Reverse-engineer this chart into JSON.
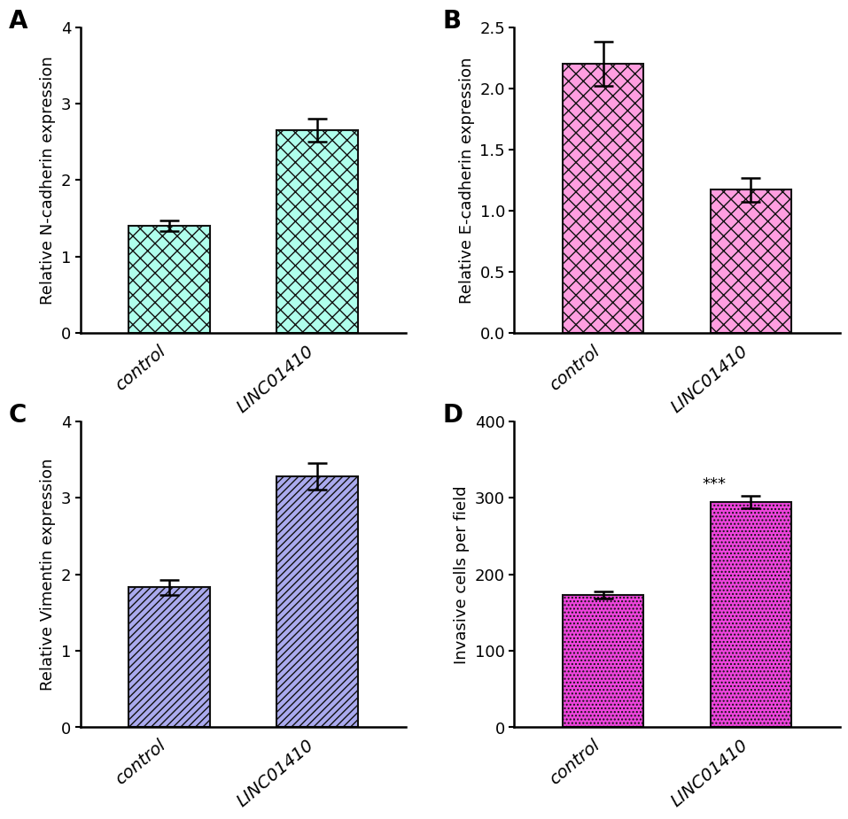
{
  "panel_A": {
    "categories": [
      "control",
      "LINC01410"
    ],
    "values": [
      1.4,
      2.65
    ],
    "errors": [
      0.07,
      0.15
    ],
    "ylabel": "Relative N-cadherin expression",
    "ylim": [
      0,
      4
    ],
    "yticks": [
      0,
      1,
      2,
      3,
      4
    ],
    "bar_color": "#AFFFEC",
    "hatch": "xx",
    "label": "A"
  },
  "panel_B": {
    "categories": [
      "control",
      "LINC01410"
    ],
    "values": [
      2.2,
      1.17
    ],
    "errors": [
      0.18,
      0.1
    ],
    "ylabel": "Relative E-cadherin expression",
    "ylim": [
      0,
      2.5
    ],
    "yticks": [
      0.0,
      0.5,
      1.0,
      1.5,
      2.0,
      2.5
    ],
    "bar_color": "#FF9EE0",
    "hatch": "xx",
    "label": "B"
  },
  "panel_C": {
    "categories": [
      "control",
      "LINC01410"
    ],
    "values": [
      1.83,
      3.28
    ],
    "errors": [
      0.1,
      0.17
    ],
    "ylabel": "Relative Vimentin expression",
    "ylim": [
      0,
      4
    ],
    "yticks": [
      0,
      1,
      2,
      3,
      4
    ],
    "bar_color": "#AAAAEE",
    "hatch": "////",
    "label": "C"
  },
  "panel_D": {
    "categories": [
      "control",
      "LINC01410"
    ],
    "values": [
      173,
      295
    ],
    "errors": [
      5,
      8
    ],
    "ylabel": "Invasive cells per field",
    "ylim": [
      0,
      400
    ],
    "yticks": [
      0,
      100,
      200,
      300,
      400
    ],
    "bar_color": "#EE44DD",
    "hatch": "....",
    "significance": "***",
    "label": "D"
  },
  "background_color": "#ffffff",
  "label_fontsize": 20,
  "tick_fontsize": 13,
  "ylabel_fontsize": 13,
  "xlabel_fontsize": 14,
  "bar_width": 0.55,
  "bar_edge_color": "#111111",
  "spine_linewidth": 1.8,
  "cap_size": 8,
  "error_linewidth": 1.8
}
